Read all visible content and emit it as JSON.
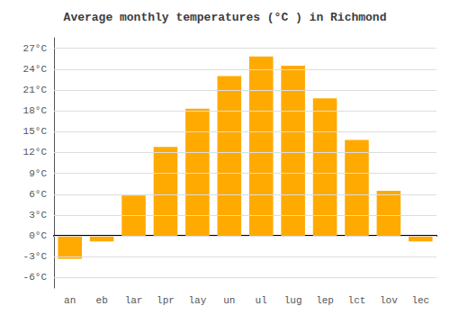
{
  "chart_data": {
    "type": "bar",
    "title": "Average monthly temperatures (°C ) in Richmond",
    "categories": [
      "an",
      "eb",
      "lar",
      "lpr",
      "lay",
      "un",
      "ul",
      "lug",
      "lep",
      "lct",
      "lov",
      "lec"
    ],
    "values": [
      -3.3,
      -0.8,
      5.8,
      12.8,
      18.3,
      23.0,
      25.8,
      24.5,
      19.8,
      13.8,
      6.5,
      -0.8
    ],
    "color": "#FFAA00",
    "ylim": [
      -7.5,
      28.5
    ],
    "yticks": [
      {
        "value": -6,
        "label": "-6°C"
      },
      {
        "value": -3,
        "label": "-3°C"
      },
      {
        "value": 0,
        "label": "0°C"
      },
      {
        "value": 3,
        "label": "3°C"
      },
      {
        "value": 6,
        "label": "6°C"
      },
      {
        "value": 9,
        "label": "9°C"
      },
      {
        "value": 12,
        "label": "12°C"
      },
      {
        "value": 15,
        "label": "15°C"
      },
      {
        "value": 18,
        "label": "18°C"
      },
      {
        "value": 21,
        "label": "21°C"
      },
      {
        "value": 24,
        "label": "24°C"
      },
      {
        "value": 27,
        "label": "27°C"
      }
    ],
    "grid": true
  }
}
